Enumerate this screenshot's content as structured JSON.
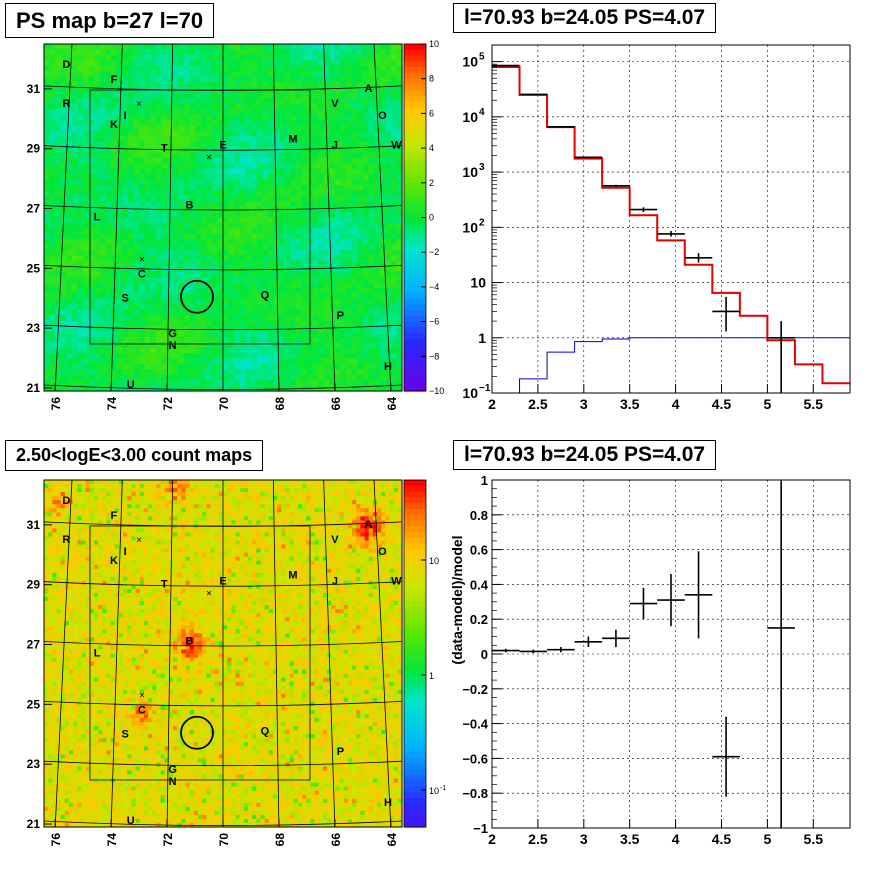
{
  "colors": {
    "model_red": "#e00000",
    "bkg_blue": "#0000c8",
    "data_black": "#000000"
  },
  "panel_ps_map": {
    "title": "PS map b=27 l=70",
    "colorbar_ticks": [
      "10",
      "8",
      "6",
      "4",
      "2",
      "0",
      "−2",
      "−4",
      "−6",
      "−8",
      "−10"
    ]
  },
  "panel_count_map": {
    "title": "2.50<logE<3.00 count maps",
    "colorbar_ticks": [
      "10",
      "1",
      "10"
    ],
    "colorbar_exp": [
      "",
      "",
      "-1"
    ]
  },
  "panel_spectrum": {
    "title": "l=70.93 b=24.05 PS=4.07"
  },
  "panel_residual": {
    "title": "l=70.93 b=24.05 PS=4.07"
  },
  "chart_data": [
    {
      "type": "heatmap",
      "name_key": "ps_map",
      "x_ticks": [
        "76",
        "74",
        "72",
        "70",
        "68",
        "66",
        "64"
      ],
      "y_ticks": [
        "31",
        "29",
        "27",
        "25",
        "23",
        "21"
      ],
      "xlim": [
        76.4,
        63.6
      ],
      "ylim": [
        20.9,
        32.5
      ],
      "zlim": [
        -10,
        10
      ],
      "labels": [
        {
          "t": "D",
          "l": 75.6,
          "b": 31.7
        },
        {
          "t": "F",
          "l": 73.9,
          "b": 31.2
        },
        {
          "t": "R",
          "l": 75.6,
          "b": 30.4
        },
        {
          "t": "I",
          "l": 73.5,
          "b": 30.0
        },
        {
          "t": "K",
          "l": 73.9,
          "b": 29.7
        },
        {
          "t": "T",
          "l": 72.1,
          "b": 28.9
        },
        {
          "t": "E",
          "l": 70.0,
          "b": 29.0
        },
        {
          "t": "M",
          "l": 67.5,
          "b": 29.2
        },
        {
          "t": "J",
          "l": 66.0,
          "b": 29.0
        },
        {
          "t": "V",
          "l": 66.0,
          "b": 30.4
        },
        {
          "t": "A",
          "l": 64.8,
          "b": 30.9
        },
        {
          "t": "O",
          "l": 64.3,
          "b": 30.0
        },
        {
          "t": "W",
          "l": 63.8,
          "b": 29.0
        },
        {
          "t": "B",
          "l": 71.2,
          "b": 27.0
        },
        {
          "t": "L",
          "l": 74.5,
          "b": 26.6
        },
        {
          "t": "C",
          "l": 72.9,
          "b": 24.7
        },
        {
          "t": "S",
          "l": 73.5,
          "b": 23.9
        },
        {
          "t": "Q",
          "l": 68.5,
          "b": 24.0
        },
        {
          "t": "P",
          "l": 65.8,
          "b": 23.3
        },
        {
          "t": "G",
          "l": 71.8,
          "b": 22.7
        },
        {
          "t": "N",
          "l": 71.8,
          "b": 22.3
        },
        {
          "t": "H",
          "l": 64.1,
          "b": 21.6
        },
        {
          "t": "U",
          "l": 73.3,
          "b": 21.0
        }
      ],
      "crosses": [
        {
          "l": 73.0,
          "b": 30.5
        },
        {
          "l": 70.5,
          "b": 28.7
        },
        {
          "l": 72.9,
          "b": 25.3
        }
      ],
      "circle": {
        "l": 70.93,
        "b": 24.05,
        "r": 0.5
      }
    },
    {
      "type": "heatmap",
      "name_key": "count_map",
      "x_ticks": [
        "76",
        "74",
        "72",
        "70",
        "68",
        "66",
        "64"
      ],
      "y_ticks": [
        "31",
        "29",
        "27",
        "25",
        "23",
        "21"
      ],
      "xlim": [
        76.4,
        63.6
      ],
      "ylim": [
        20.9,
        32.5
      ],
      "hot_spots": [
        {
          "l": 71.2,
          "b": 27.0,
          "s": 0.55,
          "a": 0.85
        },
        {
          "l": 64.8,
          "b": 30.9,
          "s": 0.55,
          "a": 0.95
        },
        {
          "l": 72.9,
          "b": 24.7,
          "s": 0.4,
          "a": 0.55
        },
        {
          "l": 75.9,
          "b": 31.7,
          "s": 0.4,
          "a": 0.5
        },
        {
          "l": 71.6,
          "b": 32.3,
          "s": 0.5,
          "a": 0.7
        }
      ],
      "circle": {
        "l": 70.93,
        "b": 24.05,
        "r": 0.5
      }
    },
    {
      "type": "line",
      "name_key": "spectrum",
      "xlim": [
        2,
        5.9
      ],
      "ylim": [
        0.1,
        200000
      ],
      "y_log": true,
      "x_ticks": [
        2,
        2.5,
        3,
        3.5,
        4,
        4.5,
        5,
        5.5
      ],
      "y_ticks": [
        {
          "v": 0.1,
          "base": "10",
          "exp": "−1"
        },
        {
          "v": 1,
          "base": "1",
          "exp": ""
        },
        {
          "v": 10,
          "base": "10",
          "exp": ""
        },
        {
          "v": 100,
          "base": "10",
          "exp": "2"
        },
        {
          "v": 1000,
          "base": "10",
          "exp": "3"
        },
        {
          "v": 10000,
          "base": "10",
          "exp": "4"
        },
        {
          "v": 100000,
          "base": "10",
          "exp": "5"
        }
      ],
      "model_edges": [
        2,
        2.3,
        2.6,
        2.9,
        3.2,
        3.5,
        3.8,
        4.1,
        4.4,
        4.7,
        5.0,
        5.3,
        5.6,
        5.9
      ],
      "model_values": [
        80000,
        25000,
        6500,
        1750,
        520,
        165,
        58,
        21,
        6.5,
        2.5,
        0.9,
        0.33,
        0.15
      ],
      "bkg_edges": [
        2.3,
        2.6,
        2.9,
        3.2,
        3.5,
        5.9
      ],
      "bkg_values": [
        0.18,
        0.55,
        0.85,
        0.95,
        1.0
      ],
      "data_points": [
        {
          "x": 2.15,
          "xe": 0.15,
          "y": 85000,
          "lo": 85000,
          "hi": 85000
        },
        {
          "x": 2.45,
          "xe": 0.15,
          "y": 25500,
          "lo": 25500,
          "hi": 25500
        },
        {
          "x": 2.75,
          "xe": 0.15,
          "y": 6600,
          "lo": 6600,
          "hi": 6600
        },
        {
          "x": 3.05,
          "xe": 0.15,
          "y": 1850,
          "lo": 1800,
          "hi": 1900
        },
        {
          "x": 3.35,
          "xe": 0.15,
          "y": 565,
          "lo": 540,
          "hi": 590
        },
        {
          "x": 3.65,
          "xe": 0.15,
          "y": 210,
          "lo": 190,
          "hi": 230
        },
        {
          "x": 3.95,
          "xe": 0.15,
          "y": 76,
          "lo": 68,
          "hi": 86
        },
        {
          "x": 4.25,
          "xe": 0.15,
          "y": 28,
          "lo": 23,
          "hi": 34
        },
        {
          "x": 4.55,
          "xe": 0.15,
          "y": 3.0,
          "lo": 1.3,
          "hi": 5.5
        },
        {
          "x": 5.15,
          "xe": 0.15,
          "y": 1.0,
          "lo": 0.1,
          "hi": 2.0
        }
      ]
    },
    {
      "type": "scatter",
      "name_key": "residual",
      "ylabel": "(data-model)/model",
      "xlim": [
        2,
        5.9
      ],
      "ylim": [
        -1,
        1
      ],
      "x_ticks": [
        2,
        2.5,
        3,
        3.5,
        4,
        4.5,
        5,
        5.5
      ],
      "y_ticks": [
        -1,
        -0.8,
        -0.6,
        -0.4,
        -0.2,
        0,
        0.2,
        0.4,
        0.6,
        0.8,
        1
      ],
      "points": [
        {
          "x": 2.15,
          "xe": 0.15,
          "y": 0.02,
          "ye": 0.01
        },
        {
          "x": 2.45,
          "xe": 0.15,
          "y": 0.015,
          "ye": 0.01
        },
        {
          "x": 2.75,
          "xe": 0.15,
          "y": 0.025,
          "ye": 0.015
        },
        {
          "x": 3.05,
          "xe": 0.15,
          "y": 0.07,
          "ye": 0.03
        },
        {
          "x": 3.35,
          "xe": 0.15,
          "y": 0.09,
          "ye": 0.05
        },
        {
          "x": 3.65,
          "xe": 0.15,
          "y": 0.29,
          "ye": 0.09
        },
        {
          "x": 3.95,
          "xe": 0.15,
          "y": 0.31,
          "ye": 0.15
        },
        {
          "x": 4.25,
          "xe": 0.15,
          "y": 0.34,
          "ye": 0.25
        },
        {
          "x": 4.55,
          "xe": 0.15,
          "y": -0.59,
          "ye": 0.23
        },
        {
          "x": 5.15,
          "xe": 0.15,
          "y": 0.15,
          "ye": 1.2
        }
      ]
    }
  ]
}
